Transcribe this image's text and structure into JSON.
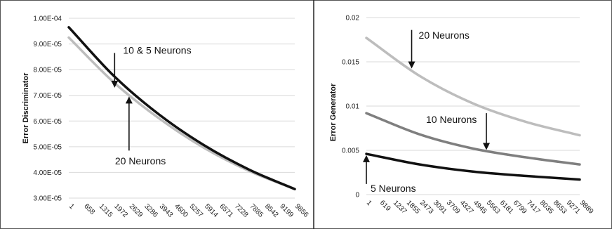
{
  "chart_data": [
    {
      "type": "line",
      "ylabel": "Error Discriminator",
      "ylim": [
        3e-05,
        0.0001
      ],
      "y_ticks": [
        3e-05,
        4e-05,
        5e-05,
        6e-05,
        7e-05,
        8e-05,
        9e-05,
        0.0001
      ],
      "y_tick_labels": [
        "3.00E-05",
        "4.00E-05",
        "5.00E-05",
        "6.00E-05",
        "7.00E-05",
        "8.00E-05",
        "9.00E-05",
        "1.00E-04"
      ],
      "x_range": [
        1,
        9856
      ],
      "x_tick_labels": [
        "1",
        "658",
        "1315",
        "1972",
        "2629",
        "3286",
        "3943",
        "4600",
        "5257",
        "5914",
        "6571",
        "7228",
        "7885",
        "8542",
        "9199",
        "9856"
      ],
      "grid": true,
      "series": [
        {
          "color": "#bdbdbd",
          "x": [
            1,
            1972,
            3943,
            5914,
            7885,
            9856
          ],
          "values": [
            9.25e-05,
            7.5e-05,
            6.1e-05,
            4.95e-05,
            4.05e-05,
            3.35e-05
          ]
        },
        {
          "color": "#111111",
          "x": [
            1,
            1972,
            3943,
            5914,
            7885,
            9856
          ],
          "values": [
            9.65e-05,
            7.75e-05,
            6.25e-05,
            5.05e-05,
            4.1e-05,
            3.35e-05
          ]
        }
      ],
      "annotations": [
        {
          "text": "10 & 5  Neurons",
          "arrow": "down",
          "x": 2000,
          "y_text": 8.75e-05,
          "y_from": 8.65e-05,
          "y_to": 7.35e-05
        },
        {
          "text": "20 Neurons",
          "arrow": "up",
          "x": 2629,
          "y_text": 4.45e-05,
          "y_from": 4.85e-05,
          "y_to": 6.9e-05
        }
      ]
    },
    {
      "type": "line",
      "ylabel": "Error Generator",
      "ylim": [
        0,
        0.02
      ],
      "y_ticks": [
        0,
        0.005,
        0.01,
        0.015,
        0.02
      ],
      "y_tick_labels": [
        "0",
        "0.005",
        "0.01",
        "0.015",
        "0.02"
      ],
      "x_range": [
        1,
        9889
      ],
      "x_tick_labels": [
        "1",
        "619",
        "1237",
        "1855",
        "2473",
        "3091",
        "3709",
        "4327",
        "4945",
        "5563",
        "6181",
        "6799",
        "7417",
        "8035",
        "8653",
        "9271",
        "9889"
      ],
      "grid": true,
      "series": [
        {
          "color": "#bdbdbd",
          "x": [
            1,
            2473,
            4945,
            7417,
            9889
          ],
          "values": [
            0.0177,
            0.0134,
            0.0103,
            0.0082,
            0.0067
          ]
        },
        {
          "color": "#7f7f7f",
          "x": [
            1,
            2473,
            4945,
            7417,
            9889
          ],
          "values": [
            0.0092,
            0.0068,
            0.0052,
            0.0042,
            0.0034
          ]
        },
        {
          "color": "#111111",
          "x": [
            1,
            2473,
            4945,
            7417,
            9889
          ],
          "values": [
            0.0046,
            0.0034,
            0.0026,
            0.0021,
            0.0017
          ]
        }
      ],
      "annotations": [
        {
          "text": "20 Neurons",
          "arrow": "down",
          "x": 2100,
          "y_text": 0.018,
          "y_from": 0.0186,
          "y_to": 0.0144
        },
        {
          "text": "10 Neurons",
          "arrow": "down",
          "x": 5563,
          "y_text": 0.0085,
          "y_from": 0.0092,
          "y_to": 0.0052
        },
        {
          "text": "5 Neurons",
          "arrow": "up",
          "x": 1,
          "y_text": 0.0007,
          "y_from": 0.0012,
          "y_to": 0.0043
        }
      ]
    }
  ]
}
